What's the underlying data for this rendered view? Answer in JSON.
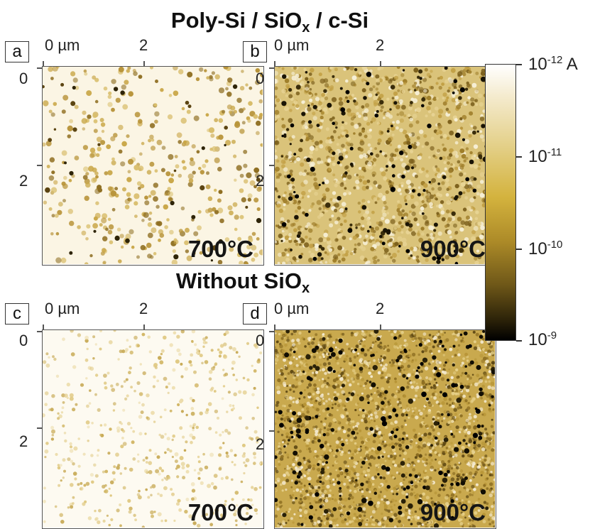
{
  "titles": {
    "top": {
      "text": "Poly-Si / SiO",
      "sub": "x",
      "tail": " / c-Si"
    },
    "mid": {
      "text": "Without SiO",
      "sub": "x"
    }
  },
  "panels": [
    {
      "id": "a",
      "letter": "a",
      "temperature": "700°C",
      "x0": "0 µm",
      "x1": "2",
      "y0": "0",
      "y1": "2",
      "density": "low"
    },
    {
      "id": "b",
      "letter": "b",
      "temperature": "900°C",
      "x0": "0 µm",
      "x1": "2",
      "y0": "0",
      "y1": "2",
      "density": "high"
    },
    {
      "id": "c",
      "letter": "c",
      "temperature": "700°C",
      "x0": "0 µm",
      "x1": "2",
      "y0": "0",
      "y1": "2",
      "density": "very-low"
    },
    {
      "id": "d",
      "letter": "d",
      "temperature": "900°C",
      "x0": "0 µm",
      "x1": "2",
      "y0": "0",
      "y1": "2",
      "density": "very-high"
    }
  ],
  "colorbar": {
    "ticks": [
      {
        "base": "10",
        "exp": "-12",
        "unit": " A"
      },
      {
        "base": "10",
        "exp": "-11",
        "unit": ""
      },
      {
        "base": "10",
        "exp": "-10",
        "unit": ""
      },
      {
        "base": "10",
        "exp": "-9",
        "unit": ""
      }
    ],
    "colors": {
      "low_current": "#ffffff",
      "mid_current": "#d4b33e",
      "high_current": "#000000"
    }
  }
}
